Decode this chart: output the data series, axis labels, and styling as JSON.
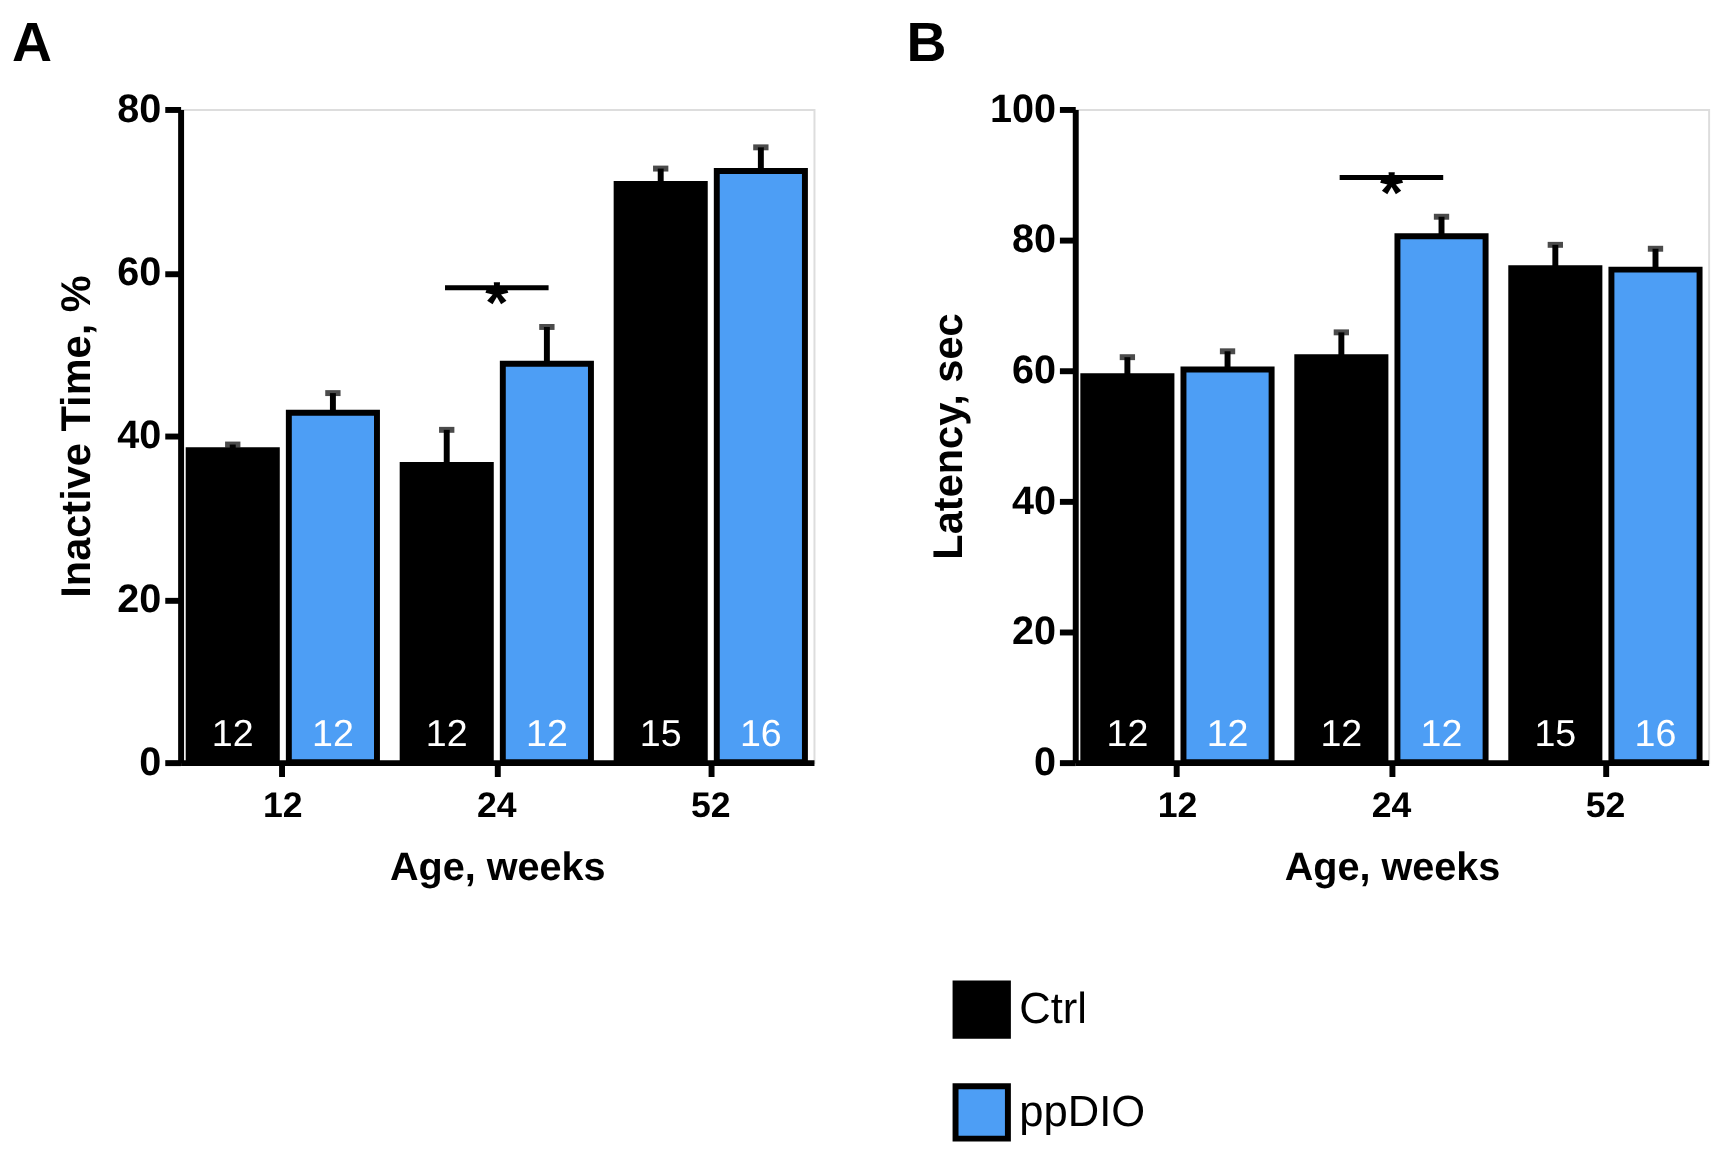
{
  "chart_data": [
    {
      "type": "bar",
      "title": "A",
      "xlabel": "Age, weeks",
      "ylabel": "Inactive Time, %",
      "categories": [
        "12",
        "24",
        "52"
      ],
      "series": [
        {
          "name": "Ctrl",
          "color": "#000000",
          "values": [
            38.2,
            36.4,
            70.8
          ],
          "errors": [
            0.7,
            4.3,
            1.9
          ]
        },
        {
          "name": "ppDIO",
          "color": "#4d9ef5",
          "values": [
            42.8,
            48.8,
            72.4
          ],
          "errors": [
            2.4,
            4.5,
            2.9
          ]
        }
      ],
      "ylim": [
        0,
        80
      ],
      "yticks": [
        0,
        20,
        40,
        60,
        80
      ],
      "grid": false,
      "legend": "bottom",
      "annotations": [
        "12",
        "12",
        "12",
        "12",
        "15",
        "16",
        "*"
      ]
    },
    {
      "type": "bar",
      "title": "B",
      "xlabel": "Age, weeks",
      "ylabel": "Latency, sec",
      "categories": [
        "12",
        "24",
        "52"
      ],
      "series": [
        {
          "name": "Ctrl",
          "color": "#000000",
          "values": [
            59.1,
            62.0,
            75.6
          ],
          "errors": [
            2.9,
            3.8,
            3.6
          ]
        },
        {
          "name": "ppDIO",
          "color": "#4d9ef5",
          "values": [
            60.1,
            80.5,
            75.4
          ],
          "errors": [
            2.8,
            3.0,
            3.2
          ]
        }
      ],
      "ylim": [
        0,
        100
      ],
      "yticks": [
        0,
        20,
        40,
        60,
        80,
        100
      ],
      "grid": false,
      "legend": "bottom",
      "annotations": [
        "12",
        "12",
        "12",
        "12",
        "15",
        "16",
        "*"
      ]
    }
  ]
}
